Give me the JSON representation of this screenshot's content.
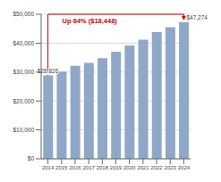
{
  "chart_data": {
    "type": "bar",
    "categories": [
      "2014",
      "2015",
      "2016",
      "2017",
      "2018",
      "2019",
      "2020",
      "2021",
      "2022",
      "2023",
      "2024"
    ],
    "values": [
      28826,
      30200,
      32200,
      33200,
      34800,
      37000,
      39200,
      41200,
      43800,
      45500,
      47274
    ],
    "color": "#8fa8c8",
    "ylim": [
      0,
      50000
    ],
    "yticks": [
      {
        "value": 0,
        "label": "$0"
      },
      {
        "value": 10000,
        "label": "$10,000"
      },
      {
        "value": 20000,
        "label": "$20,000"
      },
      {
        "value": 30000,
        "label": "$30,000"
      },
      {
        "value": 40000,
        "label": "$40,000"
      },
      {
        "value": 50000,
        "label": "$50,000"
      }
    ],
    "grid": true,
    "annotations": [
      {
        "text": "$28,826",
        "x": "2014"
      },
      {
        "text": "$47,274",
        "x": "2024"
      },
      {
        "text": "Up 64% ($18,448)",
        "x": "2014",
        "x_end": "2024",
        "color": "#cc0000"
      }
    ]
  }
}
